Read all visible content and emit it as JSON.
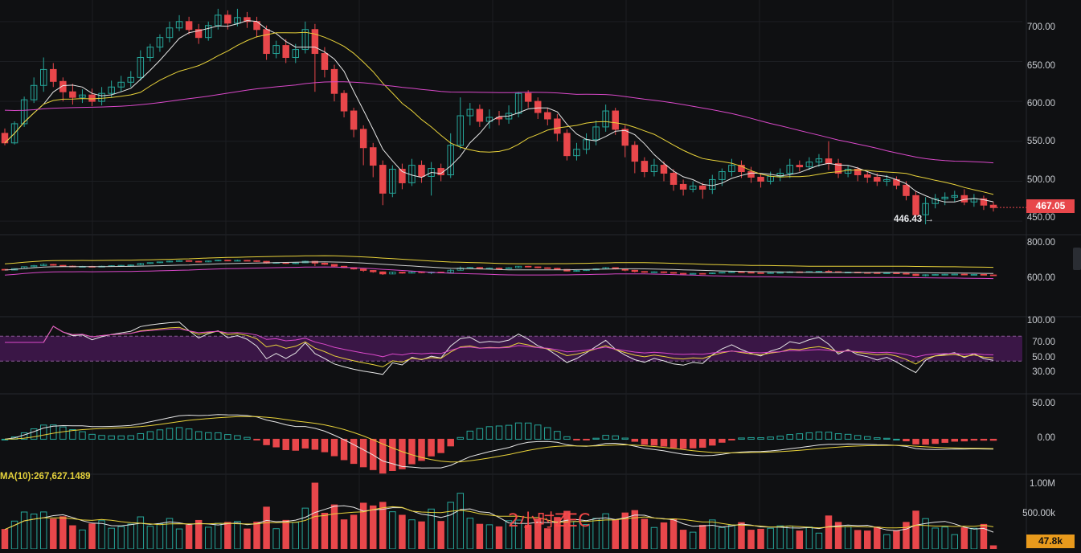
{
  "chart_data": [
    {
      "type": "candlestick",
      "panel": "price",
      "yticks": [
        "700.00",
        "650.00",
        "600.00",
        "550.00",
        "500.00",
        "450.00"
      ],
      "ytick_values": [
        700,
        650,
        600,
        550,
        500,
        450
      ],
      "ylim": [
        435,
        727
      ],
      "current_price": "467.05",
      "low_annotation": "446.43",
      "low_value": 446.43,
      "colors": {
        "up": "#26a69a",
        "down": "#e8474b",
        "ma_fast": "#e6e6e6",
        "ma_mid": "#e8d23a",
        "ma_slow": "#d948c9"
      },
      "candles": [
        [
          560,
          548,
          566,
          545
        ],
        [
          548,
          572,
          575,
          546
        ],
        [
          572,
          602,
          606,
          568
        ],
        [
          602,
          620,
          630,
          598
        ],
        [
          620,
          640,
          655,
          612
        ],
        [
          640,
          625,
          648,
          618
        ],
        [
          625,
          612,
          630,
          600
        ],
        [
          612,
          605,
          622,
          596
        ],
        [
          605,
          608,
          615,
          598
        ],
        [
          608,
          600,
          616,
          594
        ],
        [
          600,
          610,
          618,
          595
        ],
        [
          610,
          618,
          626,
          605
        ],
        [
          618,
          624,
          632,
          612
        ],
        [
          624,
          630,
          638,
          618
        ],
        [
          630,
          655,
          664,
          626
        ],
        [
          655,
          668,
          672,
          650
        ],
        [
          668,
          680,
          684,
          662
        ],
        [
          680,
          692,
          700,
          674
        ],
        [
          692,
          700,
          708,
          688
        ],
        [
          700,
          690,
          706,
          684
        ],
        [
          690,
          680,
          697,
          672
        ],
        [
          680,
          695,
          700,
          676
        ],
        [
          695,
          708,
          716,
          690
        ],
        [
          708,
          698,
          714,
          690
        ],
        [
          698,
          705,
          716,
          694
        ],
        [
          705,
          700,
          712,
          692
        ],
        [
          700,
          690,
          706,
          680
        ],
        [
          690,
          660,
          695,
          652
        ],
        [
          660,
          670,
          676,
          654
        ],
        [
          670,
          655,
          678,
          648
        ],
        [
          655,
          665,
          672,
          648
        ],
        [
          665,
          690,
          700,
          660
        ],
        [
          690,
          660,
          697,
          612
        ],
        [
          660,
          640,
          668,
          630
        ],
        [
          640,
          610,
          646,
          600
        ],
        [
          610,
          588,
          614,
          580
        ],
        [
          588,
          565,
          592,
          555
        ],
        [
          565,
          542,
          570,
          520
        ],
        [
          542,
          520,
          548,
          505
        ],
        [
          520,
          485,
          526,
          470
        ],
        [
          485,
          515,
          520,
          480
        ],
        [
          515,
          498,
          522,
          490
        ],
        [
          498,
          520,
          528,
          494
        ],
        [
          520,
          506,
          526,
          498
        ],
        [
          506,
          516,
          524,
          482
        ],
        [
          516,
          508,
          522,
          500
        ],
        [
          508,
          545,
          560,
          504
        ],
        [
          545,
          582,
          605,
          540
        ],
        [
          582,
          590,
          598,
          570
        ],
        [
          590,
          575,
          596,
          568
        ],
        [
          575,
          580,
          590,
          566
        ],
        [
          580,
          578,
          588,
          570
        ],
        [
          578,
          585,
          595,
          572
        ],
        [
          585,
          610,
          612,
          580
        ],
        [
          610,
          600,
          614,
          592
        ],
        [
          600,
          586,
          605,
          578
        ],
        [
          586,
          578,
          592,
          570
        ],
        [
          578,
          560,
          584,
          550
        ],
        [
          560,
          532,
          565,
          526
        ],
        [
          532,
          540,
          548,
          526
        ],
        [
          540,
          552,
          560,
          534
        ],
        [
          552,
          568,
          576,
          545
        ],
        [
          568,
          588,
          596,
          562
        ],
        [
          588,
          565,
          592,
          558
        ],
        [
          565,
          545,
          570,
          530
        ],
        [
          545,
          525,
          550,
          510
        ],
        [
          525,
          512,
          530,
          505
        ],
        [
          512,
          520,
          528,
          506
        ],
        [
          520,
          510,
          525,
          500
        ],
        [
          510,
          496,
          515,
          488
        ],
        [
          496,
          490,
          502,
          482
        ],
        [
          490,
          494,
          500,
          486
        ],
        [
          494,
          490,
          498,
          478
        ],
        [
          490,
          502,
          508,
          484
        ],
        [
          502,
          512,
          516,
          494
        ],
        [
          512,
          520,
          528,
          506
        ],
        [
          520,
          512,
          526,
          504
        ],
        [
          512,
          505,
          518,
          498
        ],
        [
          505,
          500,
          510,
          492
        ],
        [
          500,
          506,
          512,
          496
        ],
        [
          506,
          510,
          516,
          500
        ],
        [
          510,
          520,
          528,
          504
        ],
        [
          520,
          518,
          526,
          512
        ],
        [
          518,
          524,
          530,
          514
        ],
        [
          524,
          528,
          534,
          518
        ],
        [
          528,
          522,
          550,
          514
        ],
        [
          522,
          510,
          528,
          504
        ],
        [
          510,
          515,
          520,
          505
        ],
        [
          515,
          508,
          518,
          500
        ],
        [
          508,
          505,
          512,
          498
        ],
        [
          505,
          500,
          510,
          494
        ],
        [
          500,
          502,
          508,
          494
        ],
        [
          502,
          495,
          506,
          490
        ],
        [
          495,
          482,
          500,
          476
        ],
        [
          482,
          458,
          488,
          452
        ],
        [
          458,
          472,
          480,
          446
        ],
        [
          472,
          478,
          484,
          466
        ],
        [
          478,
          480,
          486,
          470
        ],
        [
          480,
          482,
          488,
          474
        ],
        [
          482,
          474,
          490,
          470
        ],
        [
          474,
          478,
          484,
          468
        ],
        [
          478,
          470,
          482,
          464
        ],
        [
          470,
          467,
          474,
          462
        ]
      ]
    },
    {
      "type": "line",
      "panel": "ma-overview",
      "yticks": [
        "800.00",
        "600.00"
      ],
      "ytick_values": [
        800,
        600
      ],
      "ylim": [
        200,
        850
      ]
    },
    {
      "type": "line",
      "panel": "rsi",
      "yticks": [
        "100.00",
        "70.00",
        "50.00",
        "30.00"
      ],
      "ytick_values": [
        100,
        70,
        50,
        30
      ],
      "ylim": [
        0,
        100
      ],
      "band": [
        30,
        70
      ]
    },
    {
      "type": "bar",
      "panel": "macd",
      "yticks": [
        "50.00",
        "0.00"
      ],
      "ytick_values": [
        50,
        0
      ],
      "ylim": [
        -45,
        60
      ]
    },
    {
      "type": "bar",
      "panel": "volume",
      "yticks": [
        "1.00M",
        "500.00k"
      ],
      "ytick_values": [
        1000000,
        500000
      ],
      "ylim": [
        0,
        1100000
      ],
      "vma_label": "MA(10):267,627.1489",
      "current_volume": "47.8k"
    }
  ],
  "watermark": "2小时ZEC"
}
